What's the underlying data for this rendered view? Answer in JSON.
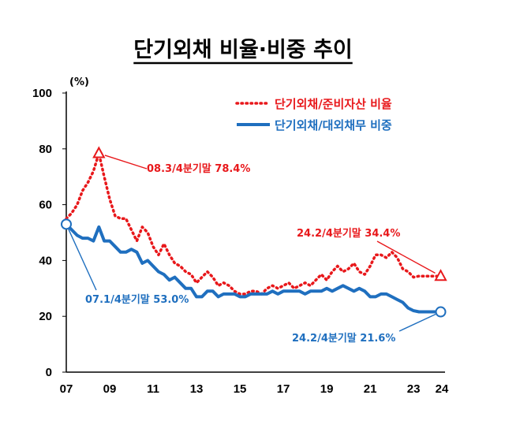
{
  "chart_data": {
    "type": "line",
    "title": "단기외채 비율·비중 추이",
    "ylabel": "(%)",
    "xlabel": "",
    "ylim": [
      0,
      100
    ],
    "xlim": [
      2007.0,
      2024.45
    ],
    "yticks": [
      0,
      20,
      40,
      60,
      80,
      100
    ],
    "xtick_labels": [
      "07",
      "09",
      "11",
      "13",
      "15",
      "17",
      "19",
      "21",
      "23",
      "24"
    ],
    "xtick_values": [
      2007,
      2009,
      2011,
      2013,
      2015,
      2017,
      2019,
      2021,
      2023,
      2024
    ],
    "legend_position": "top-right",
    "series": [
      {
        "name": "단기외채/준비자산 비율",
        "color": "#e8181b",
        "style": "dotted",
        "x": [
          2007.0,
          2007.25,
          2007.5,
          2007.75,
          2008.0,
          2008.25,
          2008.5,
          2008.75,
          2009.0,
          2009.25,
          2009.5,
          2009.75,
          2010.0,
          2010.25,
          2010.5,
          2010.75,
          2011.0,
          2011.25,
          2011.5,
          2011.75,
          2012.0,
          2012.25,
          2012.5,
          2012.75,
          2013.0,
          2013.25,
          2013.5,
          2013.75,
          2014.0,
          2014.25,
          2014.5,
          2014.75,
          2015.0,
          2015.25,
          2015.5,
          2015.75,
          2016.0,
          2016.25,
          2016.5,
          2016.75,
          2017.0,
          2017.25,
          2017.5,
          2017.75,
          2018.0,
          2018.25,
          2018.5,
          2018.75,
          2019.0,
          2019.25,
          2019.5,
          2019.75,
          2020.0,
          2020.25,
          2020.5,
          2020.75,
          2021.0,
          2021.25,
          2021.5,
          2021.75,
          2022.0,
          2022.25,
          2022.5,
          2022.75,
          2023.0,
          2023.25,
          2023.5,
          2023.75,
          2024.0,
          2024.25
        ],
        "values": [
          55,
          57,
          60,
          65,
          68,
          72,
          78.4,
          70,
          62,
          56,
          55,
          55,
          51,
          47,
          52,
          50,
          45,
          42,
          46,
          42,
          39,
          38,
          36,
          35,
          32,
          34,
          36,
          34,
          31,
          32,
          31,
          29,
          28,
          28,
          29,
          29,
          28,
          30,
          31,
          30,
          31,
          32,
          30,
          31,
          32,
          31,
          33,
          35,
          33,
          36,
          38,
          36,
          37,
          39,
          36,
          35,
          38,
          42,
          42,
          41,
          43,
          41,
          37,
          36,
          34,
          34.4,
          34.4,
          34.4,
          34.4,
          34.4
        ]
      },
      {
        "name": "단기외채/대외채무 비중",
        "color": "#1f6fbf",
        "style": "solid",
        "x": [
          2007.0,
          2007.25,
          2007.5,
          2007.75,
          2008.0,
          2008.25,
          2008.5,
          2008.75,
          2009.0,
          2009.25,
          2009.5,
          2009.75,
          2010.0,
          2010.25,
          2010.5,
          2010.75,
          2011.0,
          2011.25,
          2011.5,
          2011.75,
          2012.0,
          2012.25,
          2012.5,
          2012.75,
          2013.0,
          2013.25,
          2013.5,
          2013.75,
          2014.0,
          2014.25,
          2014.5,
          2014.75,
          2015.0,
          2015.25,
          2015.5,
          2015.75,
          2016.0,
          2016.25,
          2016.5,
          2016.75,
          2017.0,
          2017.25,
          2017.5,
          2017.75,
          2018.0,
          2018.25,
          2018.5,
          2018.75,
          2019.0,
          2019.25,
          2019.5,
          2019.75,
          2020.0,
          2020.25,
          2020.5,
          2020.75,
          2021.0,
          2021.25,
          2021.5,
          2021.75,
          2022.0,
          2022.25,
          2022.5,
          2022.75,
          2023.0,
          2023.25,
          2023.5,
          2023.75,
          2024.0,
          2024.25
        ],
        "values": [
          53.0,
          51,
          49,
          48,
          48,
          47,
          52,
          47,
          47,
          45,
          43,
          43,
          44,
          43,
          39,
          40,
          38,
          36,
          35,
          33,
          34,
          32,
          30,
          30,
          27,
          27,
          29,
          29,
          27,
          28,
          28,
          28,
          27,
          27,
          28,
          28,
          28,
          28,
          29,
          28,
          29,
          29,
          29,
          29,
          28,
          29,
          29,
          29,
          30,
          29,
          30,
          31,
          30,
          29,
          30,
          29,
          27,
          27,
          28,
          28,
          27,
          26,
          25,
          23,
          22,
          21.6,
          21.6,
          21.6,
          21.6,
          21.6
        ]
      }
    ],
    "annotations": [
      {
        "text": "08.3/4분기말  78.4%",
        "series": 0,
        "x": 2008.5,
        "y": 78.4,
        "color": "#e8181b"
      },
      {
        "text": "24.2/4분기말  34.4%",
        "series": 0,
        "x": 2024.25,
        "y": 34.4,
        "color": "#e8181b"
      },
      {
        "text": "07.1/4분기말  53.0%",
        "series": 1,
        "x": 2007.0,
        "y": 53.0,
        "color": "#1f6fbf"
      },
      {
        "text": "24.2/4분기말  21.6%",
        "series": 1,
        "x": 2024.25,
        "y": 21.6,
        "color": "#1f6fbf"
      }
    ]
  }
}
